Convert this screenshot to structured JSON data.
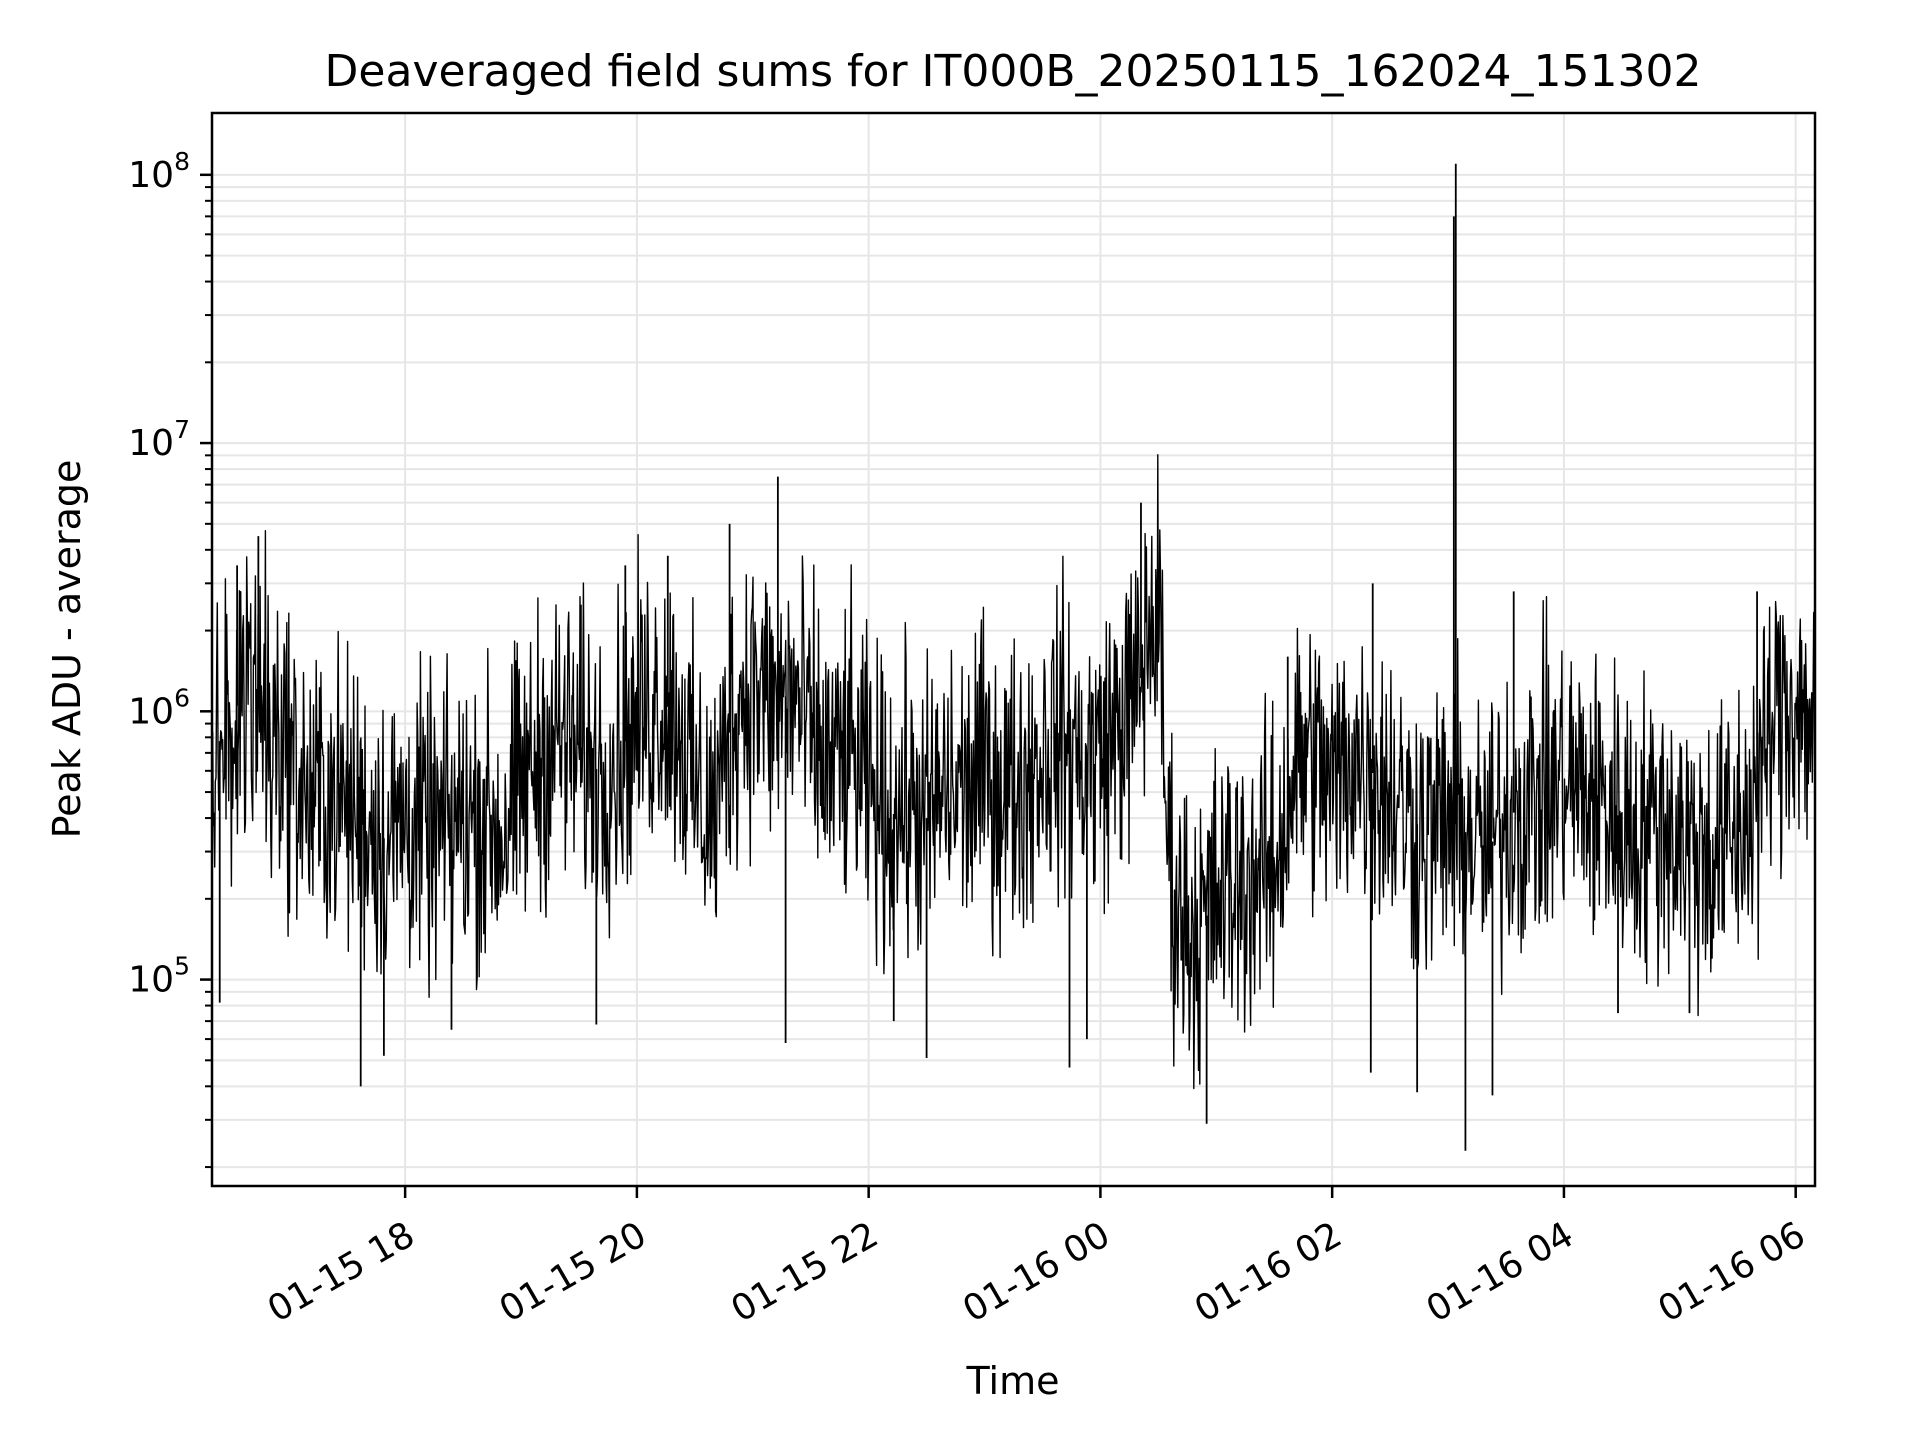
{
  "chart_data": {
    "type": "line",
    "title": "Deaveraged field sums for IT000B_20250115_162024_151302",
    "xlabel": "Time",
    "ylabel": "Peak ADU - average",
    "yscale": "log",
    "ylim": [
      17000,
      170000000
    ],
    "xlim": [
      "2025-01-15 16:20",
      "2025-01-16 06:10"
    ],
    "grid": true,
    "line_color": "#000000",
    "grid_color": "#e6e6e6",
    "x_ticks": [
      {
        "t": "2025-01-15 18:00",
        "label": "01-15 18"
      },
      {
        "t": "2025-01-15 20:00",
        "label": "01-15 20"
      },
      {
        "t": "2025-01-15 22:00",
        "label": "01-15 22"
      },
      {
        "t": "2025-01-16 00:00",
        "label": "01-16 00"
      },
      {
        "t": "2025-01-16 02:00",
        "label": "01-16 02"
      },
      {
        "t": "2025-01-16 04:00",
        "label": "01-16 04"
      },
      {
        "t": "2025-01-16 06:00",
        "label": "01-16 06"
      }
    ],
    "y_ticks": [
      {
        "v": 100000,
        "base": "10",
        "exp": "5"
      },
      {
        "v": 1000000,
        "base": "10",
        "exp": "6"
      },
      {
        "v": 10000000,
        "base": "10",
        "exp": "7"
      },
      {
        "v": 100000000,
        "base": "10",
        "exp": "8"
      }
    ],
    "series": [
      {
        "points": [
          [
            "2025-01-15 16:20",
            700000
          ],
          [
            "2025-01-15 16:30",
            900000
          ],
          [
            "2025-01-15 16:40",
            1500000
          ],
          [
            "2025-01-15 16:50",
            1000000
          ],
          [
            "2025-01-15 17:00",
            700000
          ],
          [
            "2025-01-15 17:10",
            450000
          ],
          [
            "2025-01-15 17:20",
            500000
          ],
          [
            "2025-01-15 17:30",
            450000
          ],
          [
            "2025-01-15 17:40",
            400000
          ],
          [
            "2025-01-15 17:50",
            330000
          ],
          [
            "2025-01-15 18:00",
            400000
          ],
          [
            "2025-01-15 18:10",
            350000
          ],
          [
            "2025-01-15 18:20",
            350000
          ],
          [
            "2025-01-15 18:30",
            400000
          ],
          [
            "2025-01-15 18:40",
            400000
          ],
          [
            "2025-01-15 18:50",
            350000
          ],
          [
            "2025-01-15 19:00",
            500000
          ],
          [
            "2025-01-15 19:10",
            700000
          ],
          [
            "2025-01-15 19:20",
            800000
          ],
          [
            "2025-01-15 19:30",
            700000
          ],
          [
            "2025-01-15 19:40",
            600000
          ],
          [
            "2025-01-15 19:50",
            700000
          ],
          [
            "2025-01-15 20:00",
            900000
          ],
          [
            "2025-01-15 20:10",
            1100000
          ],
          [
            "2025-01-15 20:20",
            1000000
          ],
          [
            "2025-01-15 20:30",
            500000
          ],
          [
            "2025-01-15 20:40",
            400000
          ],
          [
            "2025-01-15 20:50",
            1000000
          ],
          [
            "2025-01-15 21:00",
            1300000
          ],
          [
            "2025-01-15 21:10",
            1000000
          ],
          [
            "2025-01-15 21:20",
            1200000
          ],
          [
            "2025-01-15 21:30",
            800000
          ],
          [
            "2025-01-15 21:40",
            600000
          ],
          [
            "2025-01-15 21:50",
            700000
          ],
          [
            "2025-01-15 22:00",
            500000
          ],
          [
            "2025-01-15 22:10",
            400000
          ],
          [
            "2025-01-15 22:20",
            450000
          ],
          [
            "2025-01-15 22:30",
            400000
          ],
          [
            "2025-01-15 22:40",
            500000
          ],
          [
            "2025-01-15 22:50",
            500000
          ],
          [
            "2025-01-15 23:00",
            600000
          ],
          [
            "2025-01-15 23:10",
            500000
          ],
          [
            "2025-01-15 23:20",
            550000
          ],
          [
            "2025-01-15 23:30",
            700000
          ],
          [
            "2025-01-15 23:40",
            800000
          ],
          [
            "2025-01-15 23:50",
            650000
          ],
          [
            "2025-01-16 00:00",
            700000
          ],
          [
            "2025-01-16 00:10",
            900000
          ],
          [
            "2025-01-16 00:20",
            1200000
          ],
          [
            "2025-01-16 00:25",
            2000000
          ],
          [
            "2025-01-16 00:30",
            2500000
          ],
          [
            "2025-01-16 00:35",
            300000
          ],
          [
            "2025-01-16 00:40",
            180000
          ],
          [
            "2025-01-16 00:50",
            150000
          ],
          [
            "2025-01-16 01:00",
            200000
          ],
          [
            "2025-01-16 01:10",
            220000
          ],
          [
            "2025-01-16 01:20",
            250000
          ],
          [
            "2025-01-16 01:30",
            250000
          ],
          [
            "2025-01-16 01:40",
            600000
          ],
          [
            "2025-01-16 01:50",
            700000
          ],
          [
            "2025-01-16 02:00",
            500000
          ],
          [
            "2025-01-16 02:10",
            700000
          ],
          [
            "2025-01-16 02:20",
            600000
          ],
          [
            "2025-01-16 02:30",
            500000
          ],
          [
            "2025-01-16 02:40",
            400000
          ],
          [
            "2025-01-16 02:50",
            350000
          ],
          [
            "2025-01-16 03:00",
            400000
          ],
          [
            "2025-01-16 03:10",
            350000
          ],
          [
            "2025-01-16 03:20",
            300000
          ],
          [
            "2025-01-16 03:30",
            400000
          ],
          [
            "2025-01-16 03:40",
            450000
          ],
          [
            "2025-01-16 03:50",
            500000
          ],
          [
            "2025-01-16 04:00",
            550000
          ],
          [
            "2025-01-16 04:10",
            500000
          ],
          [
            "2025-01-16 04:20",
            450000
          ],
          [
            "2025-01-16 04:30",
            400000
          ],
          [
            "2025-01-16 04:40",
            350000
          ],
          [
            "2025-01-16 04:50",
            400000
          ],
          [
            "2025-01-16 05:00",
            350000
          ],
          [
            "2025-01-16 05:10",
            300000
          ],
          [
            "2025-01-16 05:20",
            300000
          ],
          [
            "2025-01-16 05:30",
            350000
          ],
          [
            "2025-01-16 05:40",
            500000
          ],
          [
            "2025-01-16 05:50",
            1000000
          ],
          [
            "2025-01-16 06:00",
            1100000
          ],
          [
            "2025-01-16 06:10",
            900000
          ]
        ],
        "spikes": [
          [
            "2025-01-15 16:44",
            4500000
          ],
          [
            "2025-01-15 16:33",
            3500000
          ],
          [
            "2025-01-15 16:24",
            82000
          ],
          [
            "2025-01-15 17:37",
            40000
          ],
          [
            "2025-01-15 17:49",
            52000
          ],
          [
            "2025-01-15 18:24",
            65000
          ],
          [
            "2025-01-15 19:31",
            2500000
          ],
          [
            "2025-01-15 19:54",
            3500000
          ],
          [
            "2025-01-15 20:16",
            3800000
          ],
          [
            "2025-01-15 19:39",
            68000
          ],
          [
            "2025-01-15 20:48",
            5000000
          ],
          [
            "2025-01-15 21:13",
            7500000
          ],
          [
            "2025-01-15 21:17",
            58000
          ],
          [
            "2025-01-15 22:13",
            70000
          ],
          [
            "2025-01-15 22:30",
            51000
          ],
          [
            "2025-01-15 23:44",
            47000
          ],
          [
            "2025-01-15 23:53",
            60000
          ],
          [
            "2025-01-16 00:21",
            6000000
          ],
          [
            "2025-01-16 00:55",
            29000
          ],
          [
            "2025-01-16 01:37",
            1600000
          ],
          [
            "2025-01-16 02:21",
            3000000
          ],
          [
            "2025-01-16 02:20",
            45000
          ],
          [
            "2025-01-16 02:44",
            38000
          ],
          [
            "2025-01-16 03:03",
            70000000
          ],
          [
            "2025-01-16 03:04",
            110000000
          ],
          [
            "2025-01-16 03:09",
            23000
          ],
          [
            "2025-01-16 03:23",
            37000
          ],
          [
            "2025-01-16 03:34",
            2800000
          ],
          [
            "2025-01-16 05:40",
            2800000
          ],
          [
            "2025-01-16 04:28",
            75000
          ],
          [
            "2025-01-16 05:05",
            75000
          ]
        ]
      }
    ]
  }
}
